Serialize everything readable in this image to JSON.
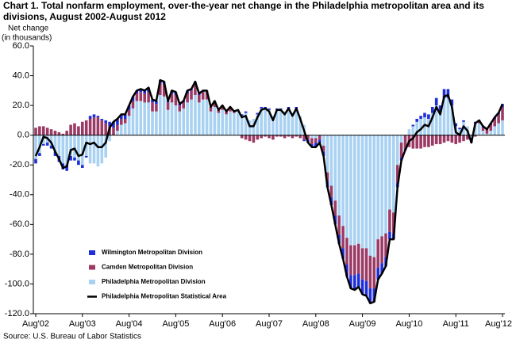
{
  "chart_data": {
    "type": "stacked-bar-line",
    "title": [
      "Chart 1. Total nonfarm employment, over-the-year net change in the Philadelphia metropolitan area and its",
      "divisions, August 2002-August 2012"
    ],
    "ylabel": [
      "Net change",
      "(in thousands)"
    ],
    "source": "Source: U.S. Bureau of Labor Statistics",
    "categories": [
      "Aug'02",
      null,
      null,
      null,
      null,
      null,
      null,
      null,
      null,
      null,
      null,
      null,
      "Aug'03",
      null,
      null,
      null,
      null,
      null,
      null,
      null,
      null,
      null,
      null,
      null,
      "Aug'04",
      null,
      null,
      null,
      null,
      null,
      null,
      null,
      null,
      null,
      null,
      null,
      "Aug'05",
      null,
      null,
      null,
      null,
      null,
      null,
      null,
      null,
      null,
      null,
      null,
      "Aug'06",
      null,
      null,
      null,
      null,
      null,
      null,
      null,
      null,
      null,
      null,
      null,
      "Aug'07",
      null,
      null,
      null,
      null,
      null,
      null,
      null,
      null,
      null,
      null,
      null,
      "Aug'08",
      null,
      null,
      null,
      null,
      null,
      null,
      null,
      null,
      null,
      null,
      null,
      "Aug'09",
      null,
      null,
      null,
      null,
      null,
      null,
      null,
      null,
      null,
      null,
      null,
      "Aug'10",
      null,
      null,
      null,
      null,
      null,
      null,
      null,
      null,
      null,
      null,
      null,
      "Aug'11",
      null,
      null,
      null,
      null,
      null,
      null,
      null,
      null,
      null,
      null,
      null,
      "Aug'12"
    ],
    "series": [
      {
        "name": "Wilmington Metropolitan Division",
        "color": "#1f2fd8",
        "kind": "bar",
        "values": [
          -3,
          -2,
          -1,
          -2,
          -2,
          -3,
          -4,
          -4,
          -4,
          -3,
          -2,
          -3,
          -2,
          -1,
          2,
          2,
          1,
          1,
          2,
          3,
          4,
          4,
          3,
          3,
          3,
          3,
          2,
          2,
          2,
          3,
          2,
          2,
          2,
          2,
          1,
          2,
          2,
          1,
          1,
          2,
          1,
          1,
          1,
          1,
          0,
          0,
          1,
          0,
          0,
          0,
          1,
          0,
          1,
          1,
          1,
          0,
          0,
          1,
          1,
          1,
          1,
          0,
          1,
          1,
          0,
          1,
          0,
          1,
          0,
          -1,
          -2,
          -2,
          -3,
          -2,
          -3,
          -4,
          -5,
          -6,
          -6,
          -7,
          -8,
          -9,
          -10,
          -9,
          -10,
          -10,
          -10,
          -9,
          -8,
          -7,
          -6,
          -5,
          -4,
          -3,
          -2,
          -1,
          0,
          1,
          2,
          2,
          3,
          3,
          4,
          5,
          5,
          6,
          6,
          4,
          2,
          1,
          1,
          0,
          -1,
          1,
          1,
          1,
          0,
          1,
          1,
          1,
          2
        ]
      },
      {
        "name": "Camden Metropolitan Division",
        "color": "#9b3a65",
        "kind": "bar",
        "values": [
          5,
          6,
          6,
          5,
          4,
          3,
          2,
          1,
          3,
          7,
          8,
          6,
          9,
          10,
          11,
          12,
          12,
          10,
          8,
          6,
          5,
          4,
          4,
          3,
          4,
          5,
          5,
          6,
          6,
          7,
          6,
          5,
          8,
          8,
          5,
          6,
          7,
          4,
          4,
          6,
          6,
          8,
          5,
          5,
          6,
          3,
          3,
          2,
          3,
          2,
          2,
          1,
          0,
          -2,
          -3,
          -4,
          -5,
          -3,
          -2,
          -1,
          -2,
          -3,
          -1,
          -1,
          -2,
          -1,
          -2,
          -1,
          -2,
          -3,
          -3,
          -4,
          -3,
          -3,
          -4,
          -6,
          -8,
          -10,
          -13,
          -15,
          -18,
          -20,
          -20,
          -20,
          -21,
          -22,
          -22,
          -21,
          -19,
          -18,
          -16,
          -15,
          -14,
          -12,
          -10,
          -9,
          -8,
          -9,
          -9,
          -9,
          -8,
          -8,
          -7,
          -6,
          -6,
          -5,
          -4,
          -5,
          -6,
          -5,
          -4,
          -3,
          -2,
          -1,
          1,
          2,
          3,
          4,
          5,
          6,
          9
        ]
      },
      {
        "name": "Philadelphia Metropolitan Division",
        "color": "#a9d1f2",
        "kind": "bar",
        "values": [
          -16,
          -12,
          -6,
          -5,
          -7,
          -11,
          -14,
          -19,
          -20,
          -14,
          -15,
          -17,
          -20,
          -14,
          -19,
          -19,
          -21,
          -19,
          -15,
          -4,
          0,
          3,
          7,
          8,
          13,
          18,
          23,
          23,
          22,
          22,
          16,
          16,
          27,
          26,
          17,
          22,
          20,
          16,
          18,
          22,
          24,
          27,
          22,
          24,
          24,
          16,
          19,
          15,
          17,
          14,
          16,
          15,
          16,
          13,
          15,
          10,
          11,
          14,
          18,
          18,
          17,
          13,
          17,
          17,
          16,
          18,
          15,
          18,
          13,
          7,
          0,
          -2,
          -2,
          0,
          -7,
          -25,
          -34,
          -44,
          -54,
          -61,
          -69,
          -74,
          -74,
          -73,
          -76,
          -76,
          -81,
          -82,
          -70,
          -68,
          -66,
          -50,
          -52,
          -20,
          -5,
          0,
          4,
          6,
          9,
          11,
          12,
          11,
          15,
          20,
          15,
          25,
          25,
          20,
          6,
          4,
          9,
          6,
          -2,
          8,
          8,
          3,
          1,
          3,
          6,
          8,
          10
        ]
      },
      {
        "name": "Philadelphia Metropolitan Statistical Area",
        "color": "#000000",
        "kind": "line",
        "values": [
          -14,
          -8,
          -1,
          -2,
          -5,
          -11,
          -16,
          -22,
          -21,
          -10,
          -9,
          -14,
          -13,
          -5,
          -6,
          -5,
          -8,
          -8,
          -5,
          5,
          9,
          11,
          14,
          14,
          20,
          26,
          30,
          31,
          30,
          32,
          24,
          23,
          37,
          36,
          23,
          30,
          29,
          21,
          23,
          30,
          31,
          36,
          28,
          30,
          30,
          19,
          23,
          17,
          20,
          16,
          19,
          16,
          17,
          12,
          13,
          6,
          6,
          12,
          17,
          18,
          16,
          10,
          17,
          17,
          14,
          18,
          13,
          18,
          11,
          3,
          -5,
          -8,
          -8,
          -5,
          -14,
          -35,
          -47,
          -60,
          -73,
          -83,
          -95,
          -103,
          -104,
          -102,
          -107,
          -108,
          -113,
          -112,
          -97,
          -93,
          -88,
          -70,
          -70,
          -35,
          -17,
          -10,
          -4,
          -2,
          2,
          4,
          7,
          6,
          12,
          19,
          14,
          26,
          27,
          19,
          2,
          0,
          6,
          3,
          -5,
          8,
          10,
          6,
          4,
          8,
          12,
          15,
          21
        ]
      }
    ],
    "ylim": [
      -120,
      60
    ],
    "yticks": [
      {
        "value": -120,
        "label": "-120.0"
      },
      {
        "value": -100,
        "label": "-100.0"
      },
      {
        "value": -80,
        "label": "-80.0"
      },
      {
        "value": -60,
        "label": "-60.0"
      },
      {
        "value": -40,
        "label": "-40.0"
      },
      {
        "value": -20,
        "label": "-20.0"
      },
      {
        "value": 0,
        "label": "0.0"
      },
      {
        "value": 20,
        "label": "20.0"
      },
      {
        "value": 40,
        "label": "40.0"
      },
      {
        "value": 60,
        "label": "60.0"
      }
    ],
    "grid": false
  }
}
